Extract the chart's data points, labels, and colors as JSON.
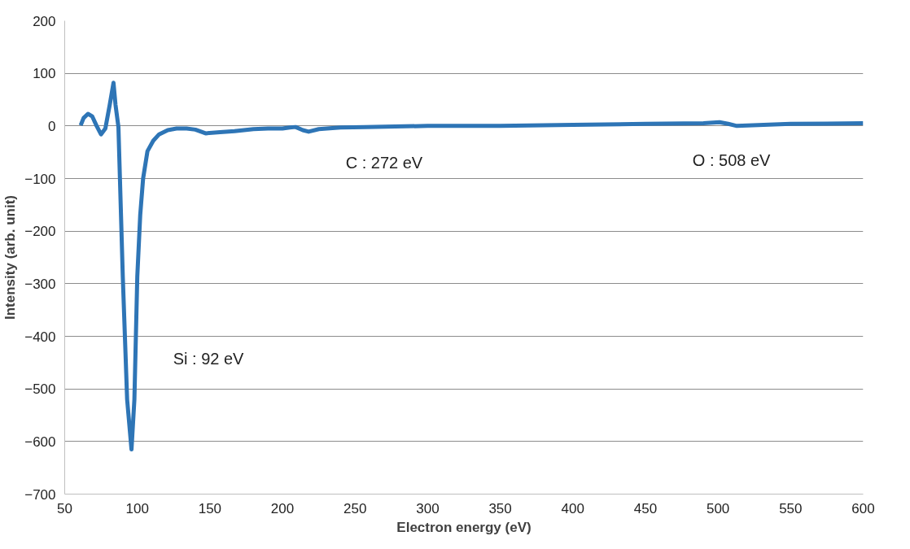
{
  "chart_data": {
    "type": "line",
    "xlabel": "Electron energy (eV)",
    "ylabel": "Intensity (arb. unit)",
    "series": [
      {
        "color": "#2e75b6",
        "x": [
          61,
          63,
          66,
          69,
          72,
          75,
          78,
          81,
          83.6,
          85,
          87,
          90,
          93,
          96,
          98,
          100,
          102,
          104,
          107,
          111,
          115,
          121,
          127,
          134,
          140,
          147,
          157,
          167,
          180,
          190,
          200,
          205,
          209,
          214,
          218,
          225,
          240,
          257,
          300,
          350,
          400,
          450,
          490,
          501,
          507,
          513,
          550,
          600
        ],
        "values": [
          1,
          15,
          23,
          18,
          0,
          -16,
          -5,
          40,
          82,
          40,
          -2,
          -286,
          -520,
          -615,
          -520,
          -286,
          -170,
          -100,
          -48,
          -28,
          -16,
          -8,
          -5,
          -5,
          -7,
          -14,
          -12,
          -10,
          -6,
          -5,
          -5,
          -3,
          -2,
          -8,
          -11,
          -6,
          -3,
          -2,
          0,
          0,
          2,
          4,
          5,
          7,
          4,
          0,
          4,
          5
        ]
      }
    ],
    "xlim": [
      50,
      600
    ],
    "ylim": [
      -700,
      200
    ],
    "xticks": [
      50,
      100,
      150,
      200,
      250,
      300,
      350,
      400,
      450,
      500,
      550,
      600
    ],
    "yticks": [
      -700,
      -600,
      -500,
      -400,
      -300,
      -200,
      -100,
      0,
      100,
      200
    ],
    "grid": "y",
    "marker": "none",
    "line_style": "solid",
    "annotations": [
      "Si : 92 eV",
      "C : 272 eV",
      "O : 508 eV"
    ]
  }
}
